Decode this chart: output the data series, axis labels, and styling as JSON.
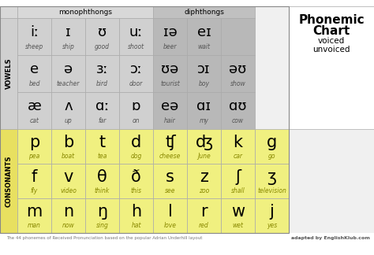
{
  "title1": "Phonemic",
  "title2": "Chart",
  "subtitle1": "voiced",
  "subtitle2": "unvoiced",
  "monophthongs_label": "monophthongs",
  "diphthongs_label": "diphthongs",
  "vowels_label": "VOWELS",
  "consonants_label": "CONSONANTS",
  "footer": "The 44 phonemes of Received Pronunciation based on the popular Adrian Underhill layout",
  "adapted": "adapted by EnglishKlub.com",
  "bg_color": "#ffffff",
  "vowel_bg": "#d0d0d0",
  "diph_bg": "#b8b8b8",
  "consonant_bg": "#f0f080",
  "header_mono_bg": "#d8d8d8",
  "header_diph_bg": "#c0c0c0",
  "lbl_vowel_bg": "#d0d0d0",
  "lbl_cons_bg": "#e8e060",
  "title_bg": "#ffffff",
  "cell_border": "#aaaaaa",
  "vowel_symbols_r1": [
    "iː",
    "ɪ",
    "ʊ",
    "uː"
  ],
  "vowel_words_r1": [
    "sheep",
    "ship",
    "good",
    "shoot"
  ],
  "vowel_symbols_r2": [
    "e",
    "ə",
    "ɜː",
    "ɔː"
  ],
  "vowel_words_r2": [
    "bed",
    "teacher",
    "bird",
    "door"
  ],
  "vowel_symbols_r3": [
    "æ",
    "ʌ",
    "ɑː",
    "ɒ"
  ],
  "vowel_words_r3": [
    "cat",
    "up",
    "far",
    "on"
  ],
  "diph_symbols_r1": [
    "ɪə",
    "eɪ"
  ],
  "diph_words_r1": [
    "beer",
    "wait"
  ],
  "diph_symbols_r2": [
    "ʊə",
    "ɔɪ",
    "əʊ"
  ],
  "diph_words_r2": [
    "tourist",
    "boy",
    "show"
  ],
  "diph_symbols_r3": [
    "eə",
    "ɑɪ",
    "ɑʊ"
  ],
  "diph_words_r3": [
    "hair",
    "my",
    "cow"
  ],
  "cons_symbols_r1": [
    "p",
    "b",
    "t",
    "d",
    "ʧ",
    "ʤ",
    "k",
    "g"
  ],
  "cons_words_r1": [
    "pea",
    "boat",
    "tea",
    "dog",
    "cheese",
    "June",
    "car",
    "go"
  ],
  "cons_symbols_r2": [
    "f",
    "v",
    "θ",
    "ð",
    "s",
    "z",
    "ʃ",
    "ʒ"
  ],
  "cons_words_r2": [
    "fly",
    "video",
    "think",
    "this",
    "see",
    "zoo",
    "shall",
    "television"
  ],
  "cons_symbols_r3": [
    "m",
    "n",
    "ŋ",
    "h",
    "l",
    "r",
    "w",
    "j"
  ],
  "cons_words_r3": [
    "man",
    "now",
    "sing",
    "hat",
    "love",
    "red",
    "wet",
    "yes"
  ]
}
